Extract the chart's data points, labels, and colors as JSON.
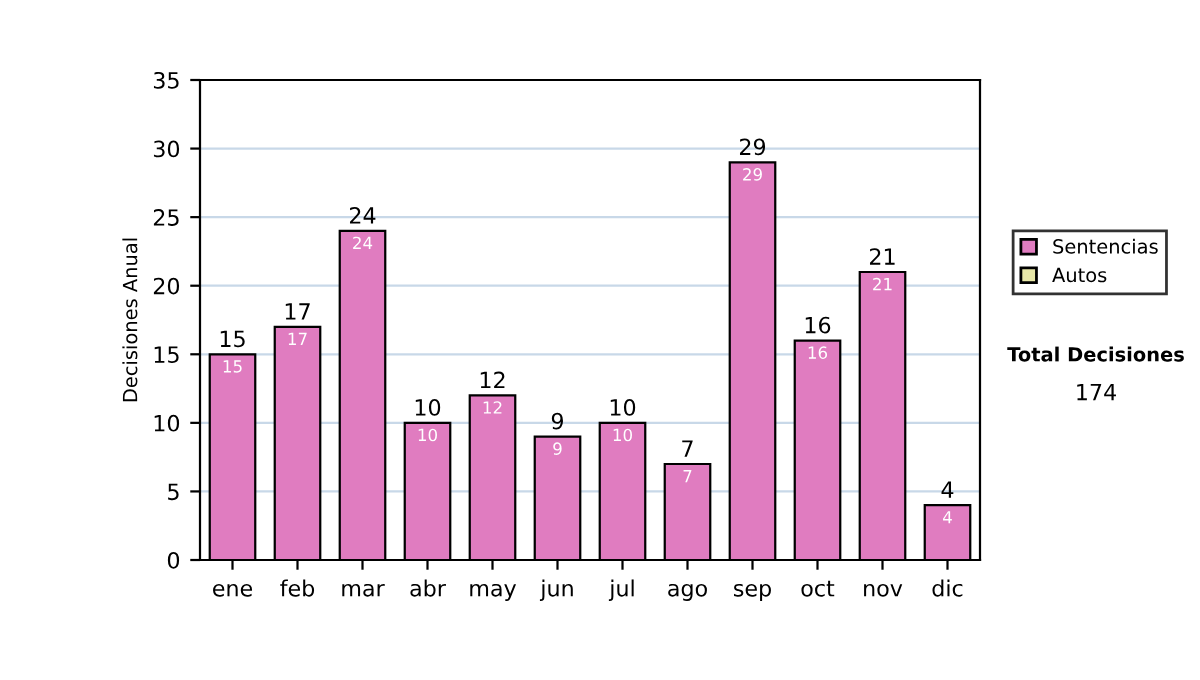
{
  "chart_data": {
    "type": "bar",
    "stacked": true,
    "categories": [
      "ene",
      "feb",
      "mar",
      "abr",
      "may",
      "jun",
      "jul",
      "ago",
      "sep",
      "oct",
      "nov",
      "dic"
    ],
    "series": [
      {
        "name": "Sentencias",
        "color": "#e07cc0",
        "values": [
          15,
          17,
          24,
          10,
          12,
          9,
          10,
          7,
          29,
          16,
          21,
          4
        ],
        "value_labels": [
          "15",
          "17",
          "24",
          "10",
          "12",
          "9",
          "10",
          "7",
          "29",
          "16",
          "21",
          "4"
        ]
      },
      {
        "name": "Autos",
        "color": "#e8e8a8",
        "values": [
          null,
          null,
          null,
          null,
          null,
          null,
          null,
          null,
          null,
          null,
          null,
          null
        ]
      }
    ],
    "totals": [
      "15",
      "17",
      "24",
      "10",
      "12",
      "9",
      "10",
      "7",
      "29",
      "16",
      "21",
      "4"
    ],
    "ylabel": "Decisiones Anual",
    "ylim": [
      0,
      35
    ],
    "yticks": [
      0,
      5,
      10,
      15,
      20,
      25,
      30,
      35
    ],
    "grid": "y",
    "legend": "right",
    "annotations": [
      "Total Decisiones",
      "174"
    ]
  }
}
